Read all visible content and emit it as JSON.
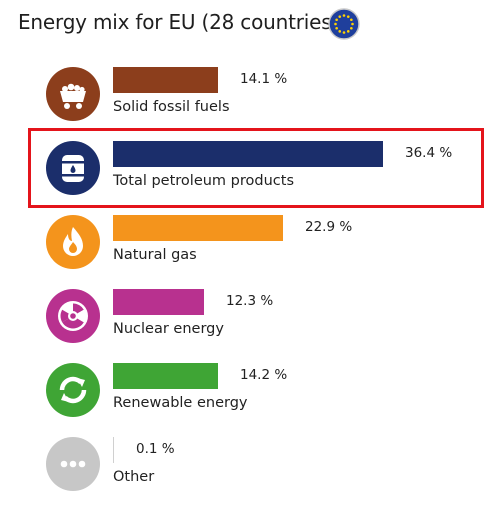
{
  "title": "Energy mix for EU (28 countries)",
  "flag_icon": "eu-flag-icon",
  "highlight_color": "#e4141b",
  "chart_data": {
    "type": "bar",
    "orientation": "horizontal",
    "title": "Energy mix for EU (28 countries)",
    "categories": [
      "Solid fossil fuels",
      "Total petroleum products",
      "Natural gas",
      "Nuclear energy",
      "Renewable energy",
      "Other"
    ],
    "values": [
      14.1,
      36.4,
      22.9,
      12.3,
      14.2,
      0.1
    ],
    "value_labels": [
      "14.1 %",
      "36.4 %",
      "22.9 %",
      "12.3 %",
      "14.2 %",
      "0.1 %"
    ],
    "colors": [
      "#8c3e1c",
      "#1b2e6b",
      "#f4941c",
      "#b8318f",
      "#3fa535",
      "#c7c7c7"
    ],
    "icons": [
      "coal-cart-icon",
      "oil-barrel-icon",
      "flame-icon",
      "radiation-icon",
      "recycle-icon",
      "ellipsis-icon"
    ],
    "highlighted_category": "Total petroleum products",
    "xlim": [
      0,
      40
    ],
    "grid": false,
    "legend": "none"
  }
}
